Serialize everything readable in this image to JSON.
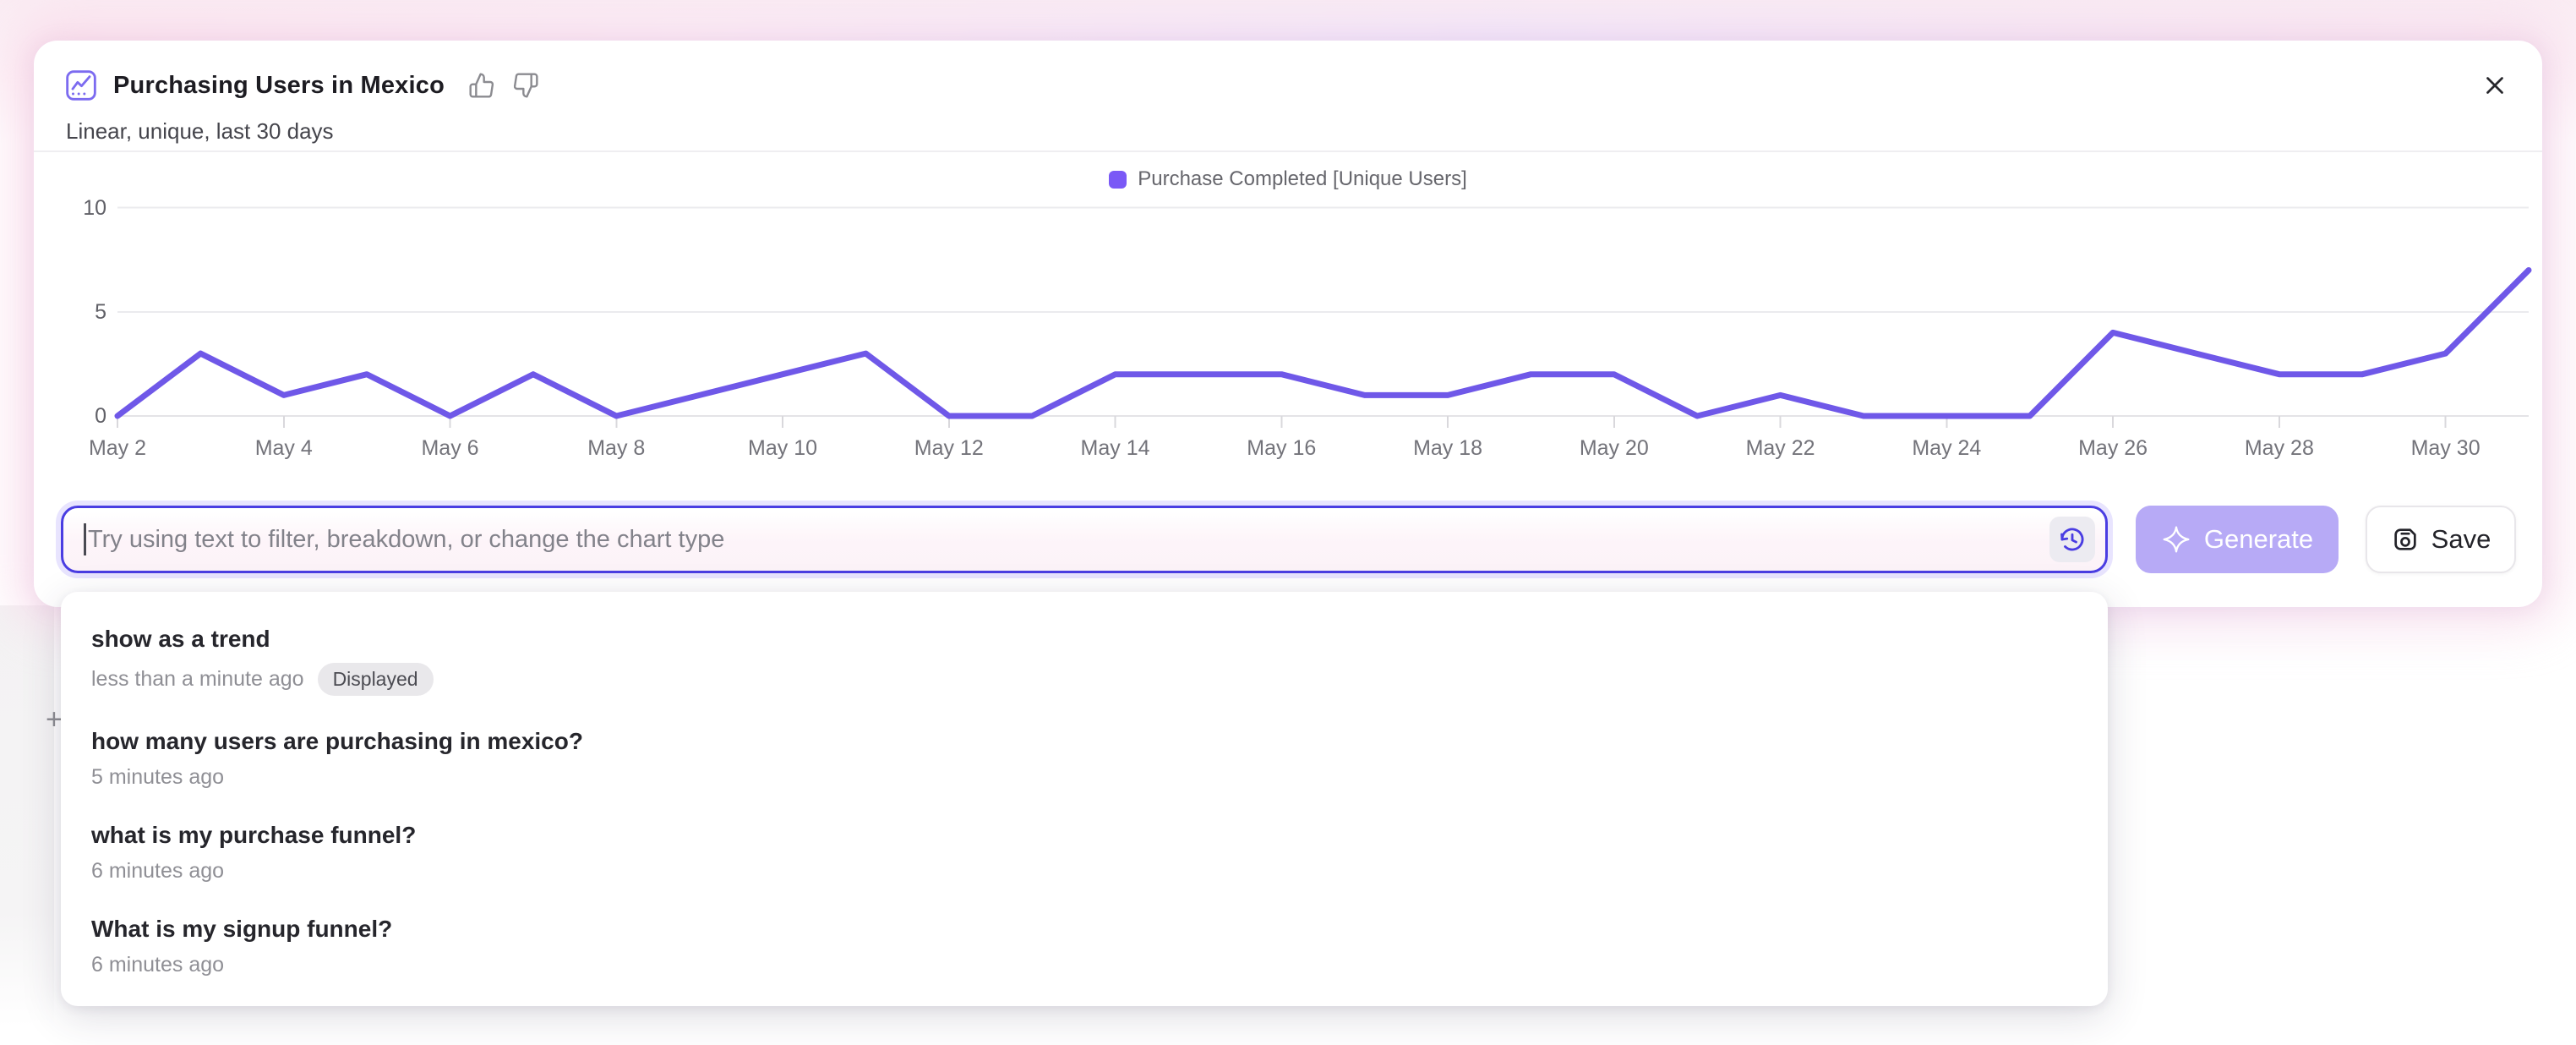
{
  "header": {
    "title": "Purchasing Users in Mexico",
    "subtitle": "Linear, unique, last 30 days"
  },
  "legend": {
    "label": "Purchase Completed [Unique Users]"
  },
  "chart_data": {
    "type": "line",
    "title": "Purchasing Users in Mexico",
    "xlabel": "",
    "ylabel": "",
    "ylim": [
      0,
      10
    ],
    "y_ticks": [
      0,
      5,
      10
    ],
    "grid": "horizontal",
    "legend_position": "top-center",
    "x_label_interval": 2,
    "categories": [
      "May 2",
      "May 3",
      "May 4",
      "May 5",
      "May 6",
      "May 7",
      "May 8",
      "May 9",
      "May 10",
      "May 11",
      "May 12",
      "May 13",
      "May 14",
      "May 15",
      "May 16",
      "May 17",
      "May 18",
      "May 19",
      "May 20",
      "May 21",
      "May 22",
      "May 23",
      "May 24",
      "May 25",
      "May 26",
      "May 27",
      "May 28",
      "May 29",
      "May 30",
      "May 31"
    ],
    "series": [
      {
        "name": "Purchase Completed [Unique Users]",
        "color": "#6F58E8",
        "values": [
          0,
          3,
          1,
          2,
          0,
          2,
          0,
          1,
          2,
          3,
          0,
          0,
          2,
          2,
          2,
          1,
          1,
          2,
          2,
          0,
          1,
          0,
          0,
          0,
          4,
          3,
          2,
          2,
          3,
          7
        ]
      }
    ]
  },
  "ai_bar": {
    "input_value": "",
    "placeholder": "Try using text to filter, breakdown, or change the chart type",
    "generate_label": "Generate",
    "save_label": "Save"
  },
  "history": {
    "items": [
      {
        "query": "show as a trend",
        "time": "less than a minute ago",
        "badge": "Displayed"
      },
      {
        "query": "how many users are purchasing in mexico?",
        "time": "5 minutes ago"
      },
      {
        "query": "what is my purchase funnel?",
        "time": "6 minutes ago"
      },
      {
        "query": "What is my signup funnel?",
        "time": "6 minutes ago"
      }
    ]
  },
  "background": {
    "plus_glyph": "+"
  },
  "colors": {
    "accent_indigo": "#4A3DE2",
    "line_purple": "#6F58E8",
    "legend_swatch": "#7A59F6",
    "generate_button_bg": "#B7AAF6",
    "badge_bg": "#E9E8EB"
  }
}
